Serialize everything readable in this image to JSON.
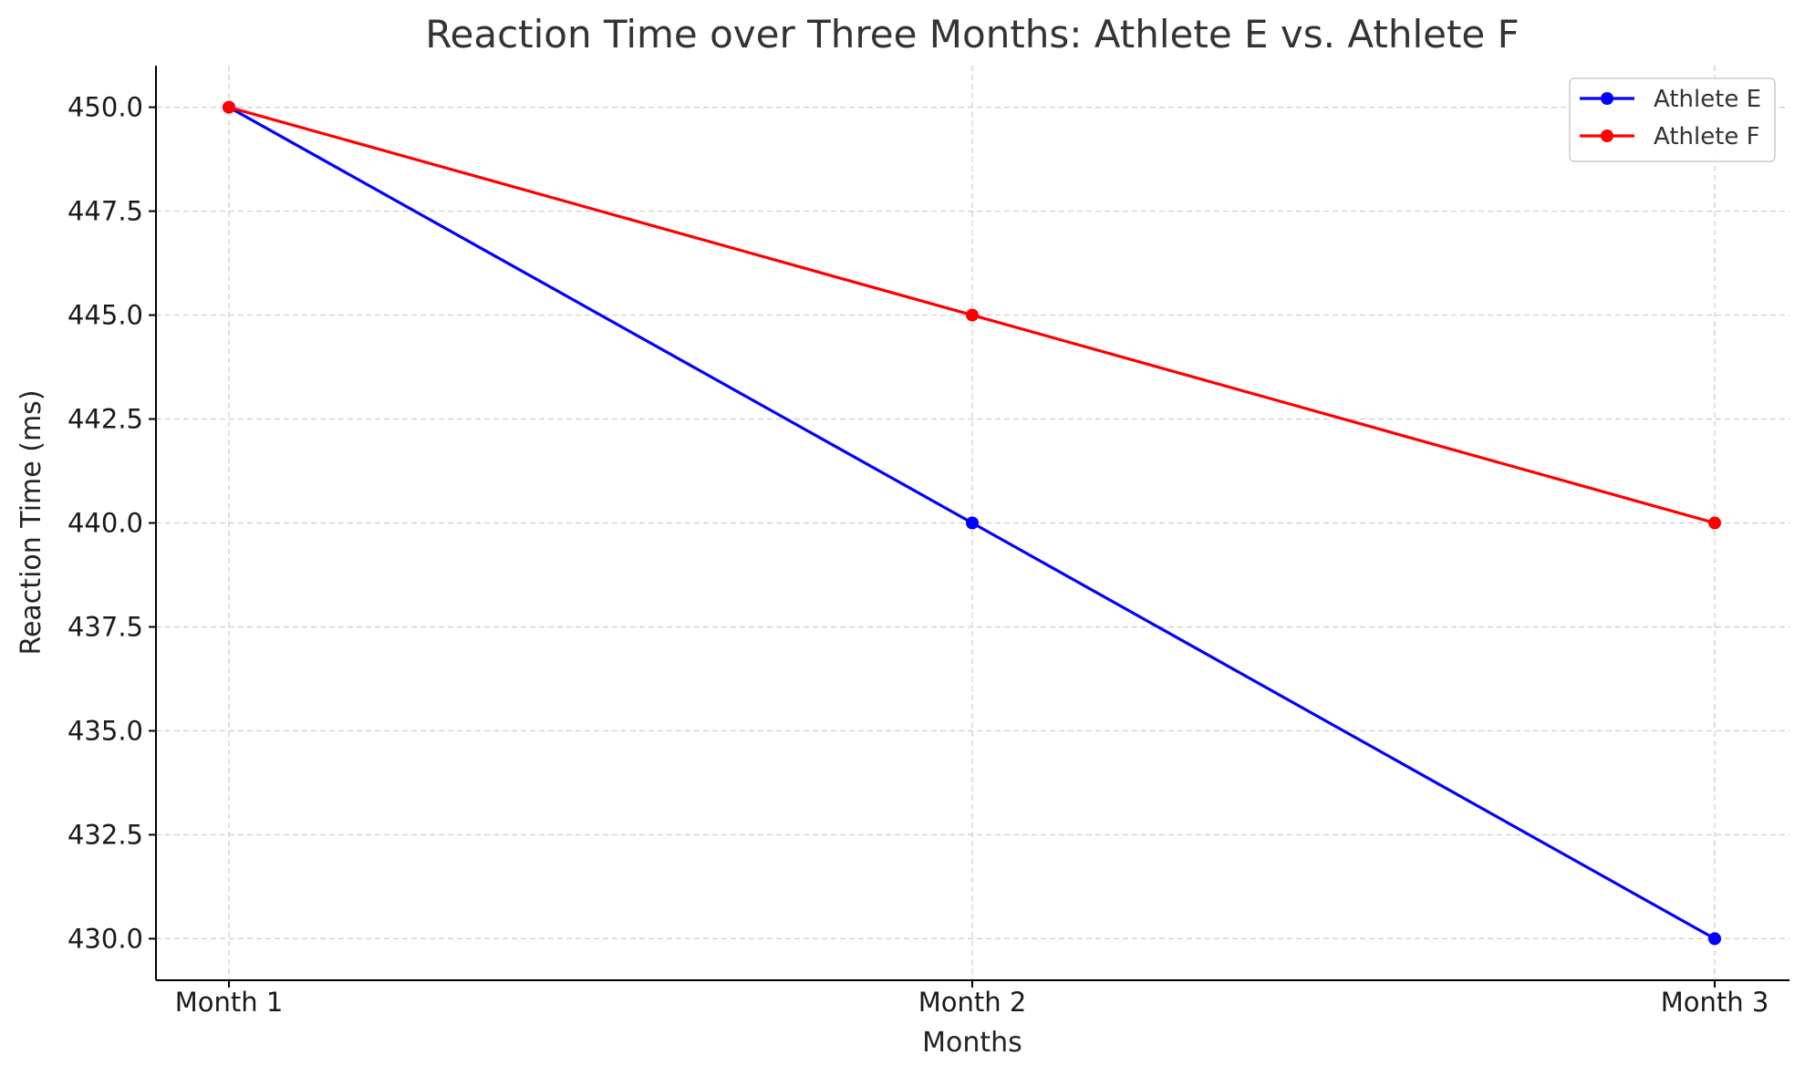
{
  "chart_data": {
    "type": "line",
    "title": "Reaction Time over Three Months: Athlete E vs. Athlete F",
    "xlabel": "Months",
    "ylabel": "Reaction Time (ms)",
    "categories": [
      "Month 1",
      "Month 2",
      "Month 3"
    ],
    "ylim": [
      429,
      451
    ],
    "yticks": [
      430.0,
      432.5,
      435.0,
      437.5,
      440.0,
      442.5,
      445.0,
      447.5,
      450.0
    ],
    "ytick_labels": [
      "430.0",
      "432.5",
      "435.0",
      "437.5",
      "440.0",
      "442.5",
      "445.0",
      "447.5",
      "450.0"
    ],
    "grid": true,
    "legend_position": "top-right",
    "series": [
      {
        "name": "Athlete E",
        "color": "#0000ff",
        "marker": "circle",
        "values": [
          450,
          440,
          430
        ]
      },
      {
        "name": "Athlete F",
        "color": "#ff0000",
        "marker": "circle",
        "values": [
          450,
          445,
          440
        ]
      }
    ]
  }
}
